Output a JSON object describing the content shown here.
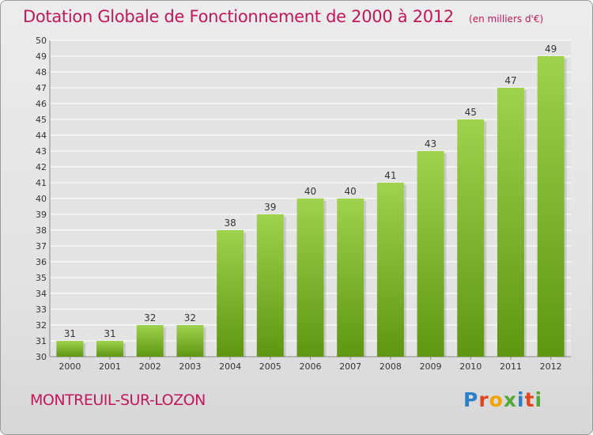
{
  "header": {
    "title": "Dotation Globale de Fonctionnement de 2000 à 2012",
    "unit": "(en milliers d'€)"
  },
  "footer": {
    "commune": "MONTREUIL-SUR-LOZON",
    "logo_letters": [
      "P",
      "r",
      "o",
      "x",
      "i",
      "t",
      "i"
    ],
    "logo_colors": [
      "#2a7fc9",
      "#e0451f",
      "#f2a400",
      "#52a83a",
      "#2a7fc9",
      "#e0451f",
      "#52a83a"
    ]
  },
  "colors": {
    "title": "#c2185b",
    "bar_top": "#9fd24d",
    "bar_bottom": "#5e9612",
    "grid": "#ffffff"
  },
  "chart_data": {
    "type": "bar",
    "title": "Dotation Globale de Fonctionnement de 2000 à 2012",
    "subtitle": "(en milliers d'€)",
    "categories": [
      "2000",
      "2001",
      "2002",
      "2003",
      "2004",
      "2005",
      "2006",
      "2007",
      "2008",
      "2009",
      "2010",
      "2011",
      "2012"
    ],
    "values": [
      31,
      31,
      32,
      32,
      38,
      39,
      40,
      40,
      41,
      43,
      45,
      47,
      49
    ],
    "value_labels": [
      "31",
      "31",
      "32",
      "32",
      "38",
      "39",
      "40",
      "40",
      "41",
      "43",
      "45",
      "47",
      "49"
    ],
    "yticks": [
      "30",
      "31",
      "32",
      "33",
      "34",
      "35",
      "36",
      "37",
      "38",
      "39",
      "40",
      "41",
      "42",
      "43",
      "44",
      "45",
      "46",
      "47",
      "48",
      "49",
      "50"
    ],
    "ylim": [
      30,
      50
    ],
    "grid": true,
    "xlabel": "",
    "ylabel": ""
  }
}
